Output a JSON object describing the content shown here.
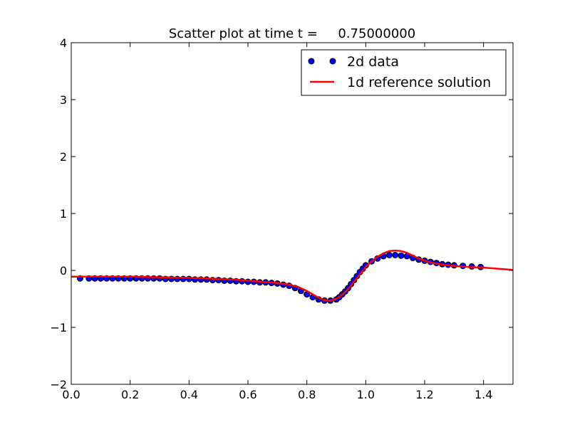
{
  "chart_data": {
    "type": "scatter",
    "title": "Scatter plot at time t =     0.75000000",
    "xlabel": "",
    "ylabel": "",
    "xlim": [
      0.0,
      1.5
    ],
    "ylim": [
      -2,
      4
    ],
    "x_ticks": [
      {
        "value": 0.0,
        "label": "0.0"
      },
      {
        "value": 0.2,
        "label": "0.2"
      },
      {
        "value": 0.4,
        "label": "0.4"
      },
      {
        "value": 0.6,
        "label": "0.6"
      },
      {
        "value": 0.8,
        "label": "0.8"
      },
      {
        "value": 1.0,
        "label": "1.0"
      },
      {
        "value": 1.2,
        "label": "1.2"
      },
      {
        "value": 1.4,
        "label": "1.4"
      }
    ],
    "y_ticks": [
      {
        "value": -2,
        "label": "−2"
      },
      {
        "value": -1,
        "label": "−1"
      },
      {
        "value": 0,
        "label": "0"
      },
      {
        "value": 1,
        "label": "1"
      },
      {
        "value": 2,
        "label": "2"
      },
      {
        "value": 3,
        "label": "3"
      },
      {
        "value": 4,
        "label": "4"
      }
    ],
    "grid": false,
    "legend_position": "top-right",
    "series": [
      {
        "name": "2d data",
        "kind": "scatter",
        "color": "#0000ff",
        "edge_color": "#000000",
        "points": [
          [
            0.03,
            -0.14
          ],
          [
            0.06,
            -0.14
          ],
          [
            0.08,
            -0.14
          ],
          [
            0.1,
            -0.14
          ],
          [
            0.12,
            -0.14
          ],
          [
            0.14,
            -0.14
          ],
          [
            0.16,
            -0.14
          ],
          [
            0.18,
            -0.14
          ],
          [
            0.2,
            -0.14
          ],
          [
            0.22,
            -0.14
          ],
          [
            0.24,
            -0.14
          ],
          [
            0.26,
            -0.14
          ],
          [
            0.28,
            -0.14
          ],
          [
            0.3,
            -0.14
          ],
          [
            0.32,
            -0.15
          ],
          [
            0.34,
            -0.15
          ],
          [
            0.36,
            -0.15
          ],
          [
            0.38,
            -0.15
          ],
          [
            0.4,
            -0.15
          ],
          [
            0.42,
            -0.16
          ],
          [
            0.44,
            -0.16
          ],
          [
            0.46,
            -0.16
          ],
          [
            0.48,
            -0.17
          ],
          [
            0.5,
            -0.17
          ],
          [
            0.52,
            -0.18
          ],
          [
            0.54,
            -0.18
          ],
          [
            0.56,
            -0.19
          ],
          [
            0.58,
            -0.19
          ],
          [
            0.6,
            -0.2
          ],
          [
            0.62,
            -0.2
          ],
          [
            0.64,
            -0.21
          ],
          [
            0.66,
            -0.21
          ],
          [
            0.68,
            -0.22
          ],
          [
            0.7,
            -0.23
          ],
          [
            0.72,
            -0.25
          ],
          [
            0.74,
            -0.27
          ],
          [
            0.76,
            -0.31
          ],
          [
            0.78,
            -0.36
          ],
          [
            0.8,
            -0.42
          ],
          [
            0.82,
            -0.47
          ],
          [
            0.84,
            -0.51
          ],
          [
            0.86,
            -0.53
          ],
          [
            0.88,
            -0.53
          ],
          [
            0.9,
            -0.51
          ],
          [
            0.91,
            -0.47
          ],
          [
            0.92,
            -0.42
          ],
          [
            0.93,
            -0.37
          ],
          [
            0.94,
            -0.31
          ],
          [
            0.95,
            -0.24
          ],
          [
            0.96,
            -0.17
          ],
          [
            0.97,
            -0.1
          ],
          [
            0.98,
            -0.03
          ],
          [
            0.99,
            0.03
          ],
          [
            1.0,
            0.09
          ],
          [
            1.02,
            0.16
          ],
          [
            1.04,
            0.21
          ],
          [
            1.06,
            0.25
          ],
          [
            1.08,
            0.27
          ],
          [
            1.1,
            0.27
          ],
          [
            1.12,
            0.26
          ],
          [
            1.14,
            0.25
          ],
          [
            1.16,
            0.22
          ],
          [
            1.18,
            0.19
          ],
          [
            1.2,
            0.17
          ],
          [
            1.22,
            0.15
          ],
          [
            1.24,
            0.13
          ],
          [
            1.26,
            0.11
          ],
          [
            1.28,
            0.1
          ],
          [
            1.3,
            0.09
          ],
          [
            1.33,
            0.08
          ],
          [
            1.36,
            0.07
          ],
          [
            1.39,
            0.06
          ]
        ]
      },
      {
        "name": "1d reference solution",
        "kind": "line",
        "color": "#ff0000",
        "points": [
          [
            0.0,
            -0.11
          ],
          [
            0.1,
            -0.11
          ],
          [
            0.2,
            -0.11
          ],
          [
            0.3,
            -0.12
          ],
          [
            0.4,
            -0.13
          ],
          [
            0.5,
            -0.15
          ],
          [
            0.55,
            -0.16
          ],
          [
            0.6,
            -0.18
          ],
          [
            0.65,
            -0.2
          ],
          [
            0.7,
            -0.22
          ],
          [
            0.74,
            -0.25
          ],
          [
            0.77,
            -0.29
          ],
          [
            0.8,
            -0.36
          ],
          [
            0.82,
            -0.42
          ],
          [
            0.84,
            -0.48
          ],
          [
            0.86,
            -0.52
          ],
          [
            0.88,
            -0.53
          ],
          [
            0.9,
            -0.5
          ],
          [
            0.92,
            -0.43
          ],
          [
            0.94,
            -0.33
          ],
          [
            0.96,
            -0.2
          ],
          [
            0.98,
            -0.07
          ],
          [
            1.0,
            0.06
          ],
          [
            1.02,
            0.16
          ],
          [
            1.04,
            0.24
          ],
          [
            1.06,
            0.3
          ],
          [
            1.08,
            0.34
          ],
          [
            1.1,
            0.35
          ],
          [
            1.12,
            0.34
          ],
          [
            1.14,
            0.31
          ],
          [
            1.16,
            0.26
          ],
          [
            1.18,
            0.21
          ],
          [
            1.2,
            0.17
          ],
          [
            1.22,
            0.14
          ],
          [
            1.25,
            0.11
          ],
          [
            1.3,
            0.08
          ],
          [
            1.35,
            0.06
          ],
          [
            1.4,
            0.05
          ],
          [
            1.45,
            0.03
          ],
          [
            1.5,
            0.01
          ]
        ]
      }
    ]
  }
}
